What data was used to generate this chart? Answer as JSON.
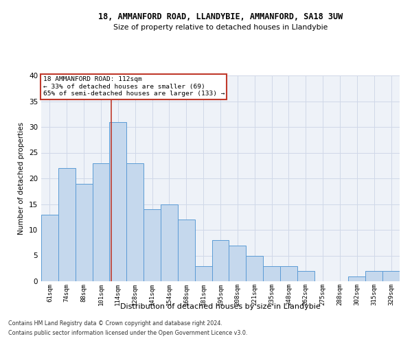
{
  "title1": "18, AMMANFORD ROAD, LLANDYBIE, AMMANFORD, SA18 3UW",
  "title2": "Size of property relative to detached houses in Llandybie",
  "xlabel": "Distribution of detached houses by size in Llandybie",
  "ylabel": "Number of detached properties",
  "categories": [
    "61sqm",
    "74sqm",
    "88sqm",
    "101sqm",
    "114sqm",
    "128sqm",
    "141sqm",
    "154sqm",
    "168sqm",
    "181sqm",
    "195sqm",
    "208sqm",
    "221sqm",
    "235sqm",
    "248sqm",
    "262sqm",
    "275sqm",
    "288sqm",
    "302sqm",
    "315sqm",
    "329sqm"
  ],
  "values": [
    13,
    22,
    19,
    23,
    31,
    23,
    14,
    15,
    12,
    3,
    8,
    7,
    5,
    3,
    3,
    2,
    0,
    0,
    1,
    2,
    2
  ],
  "bar_color": "#c5d8ed",
  "bar_edge_color": "#5b9bd5",
  "property_label": "18 AMMANFORD ROAD: 112sqm",
  "annotation_line1": "← 33% of detached houses are smaller (69)",
  "annotation_line2": "65% of semi-detached houses are larger (133) →",
  "vline_color": "#c0392b",
  "vline_position": 3.6,
  "annotation_box_color": "#ffffff",
  "annotation_box_edge_color": "#c0392b",
  "ylim": [
    0,
    40
  ],
  "yticks": [
    0,
    5,
    10,
    15,
    20,
    25,
    30,
    35,
    40
  ],
  "grid_color": "#d0d8e8",
  "background_color": "#eef2f8",
  "footnote1": "Contains HM Land Registry data © Crown copyright and database right 2024.",
  "footnote2": "Contains public sector information licensed under the Open Government Licence v3.0."
}
